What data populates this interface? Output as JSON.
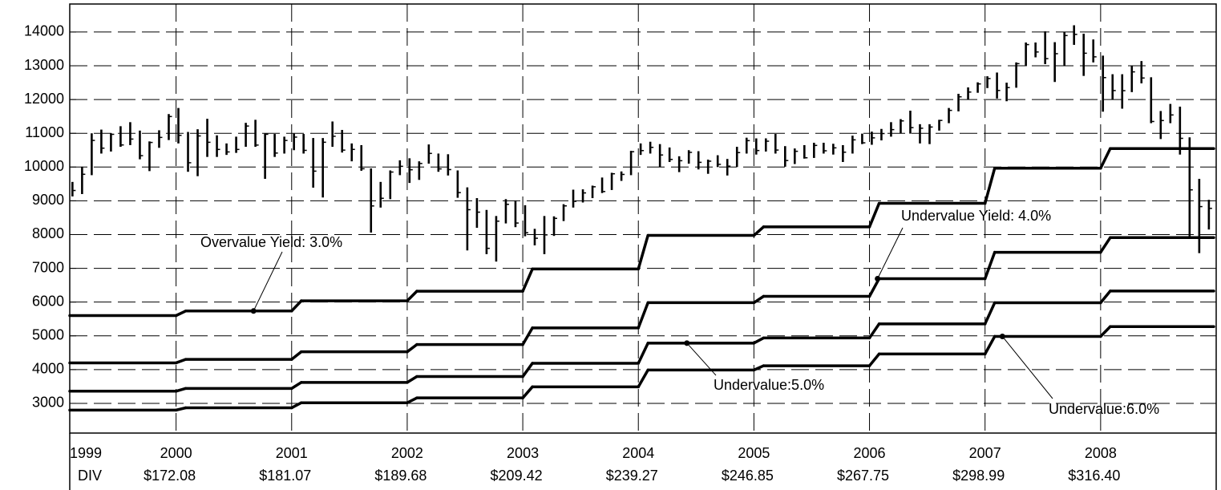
{
  "chart_data": {
    "type": "ohlc",
    "color": "#000000",
    "grid": true,
    "x": [
      "1999-02",
      "1999-03",
      "1999-04",
      "1999-05",
      "1999-06",
      "1999-07",
      "1999-08",
      "1999-09",
      "1999-10",
      "1999-11",
      "1999-12",
      "2000-01",
      "2000-02",
      "2000-03",
      "2000-04",
      "2000-05",
      "2000-06",
      "2000-07",
      "2000-08",
      "2000-09",
      "2000-10",
      "2000-11",
      "2000-12",
      "2001-01",
      "2001-02",
      "2001-03",
      "2001-04",
      "2001-05",
      "2001-06",
      "2001-07",
      "2001-08",
      "2001-09",
      "2001-10",
      "2001-11",
      "2001-12",
      "2002-01",
      "2002-02",
      "2002-03",
      "2002-04",
      "2002-05",
      "2002-06",
      "2002-07",
      "2002-08",
      "2002-09",
      "2002-10",
      "2002-11",
      "2002-12",
      "2003-01",
      "2003-02",
      "2003-03",
      "2003-04",
      "2003-05",
      "2003-06",
      "2003-07",
      "2003-08",
      "2003-09",
      "2003-10",
      "2003-11",
      "2003-12",
      "2004-01",
      "2004-02",
      "2004-03",
      "2004-04",
      "2004-05",
      "2004-06",
      "2004-07",
      "2004-08",
      "2004-09",
      "2004-10",
      "2004-11",
      "2004-12",
      "2005-01",
      "2005-02",
      "2005-03",
      "2005-04",
      "2005-05",
      "2005-06",
      "2005-07",
      "2005-08",
      "2005-09",
      "2005-10",
      "2005-11",
      "2005-12",
      "2006-01",
      "2006-02",
      "2006-03",
      "2006-04",
      "2006-05",
      "2006-06",
      "2006-07",
      "2006-08",
      "2006-09",
      "2006-10",
      "2006-11",
      "2006-12",
      "2007-01",
      "2007-02",
      "2007-03",
      "2007-04",
      "2007-05",
      "2007-06",
      "2007-07",
      "2007-08",
      "2007-09",
      "2007-10",
      "2007-11",
      "2007-12",
      "2008-01",
      "2008-02",
      "2008-03",
      "2008-04",
      "2008-05",
      "2008-06",
      "2008-07",
      "2008-08",
      "2008-09",
      "2008-10",
      "2008-11",
      "2008-12"
    ],
    "high": [
      9560,
      10010,
      11000,
      11110,
      11000,
      11210,
      11330,
      11080,
      10760,
      11090,
      11570,
      11750,
      11040,
      11120,
      11430,
      10940,
      10700,
      10900,
      11310,
      11400,
      10990,
      10980,
      10900,
      10990,
      10980,
      10860,
      10860,
      11350,
      11100,
      10700,
      10650,
      9960,
      9560,
      9900,
      10200,
      10260,
      10170,
      10670,
      10400,
      10380,
      9900,
      9400,
      9080,
      8730,
      8550,
      9050,
      9000,
      8870,
      8170,
      8550,
      8540,
      8900,
      9330,
      9340,
      9450,
      9690,
      9830,
      9870,
      10480,
      10700,
      10750,
      10680,
      10580,
      10320,
      10500,
      10470,
      10220,
      10350,
      10240,
      10600,
      10870,
      10850,
      10850,
      10980,
      10620,
      10550,
      10650,
      10720,
      10720,
      10690,
      10650,
      10930,
      10990,
      11050,
      11130,
      11330,
      11420,
      11670,
      11270,
      11270,
      11400,
      11750,
      12170,
      12360,
      12510,
      12690,
      12800,
      12500,
      13100,
      13690,
      13690,
      14020,
      13700,
      14000,
      14200,
      13950,
      13780,
      13300,
      12750,
      12750,
      13010,
      13140,
      12660,
      11660,
      11870,
      11790,
      10880,
      9650,
      9030
    ],
    "low": [
      9130,
      9200,
      9760,
      10400,
      10460,
      10600,
      10650,
      10230,
      9880,
      10570,
      10800,
      10700,
      9860,
      9730,
      10300,
      10300,
      10360,
      10420,
      10600,
      10600,
      9650,
      10300,
      10400,
      10500,
      10400,
      9390,
      9100,
      10600,
      10430,
      10170,
      9890,
      8060,
      8800,
      9050,
      9760,
      9530,
      9620,
      10100,
      9860,
      9750,
      9090,
      7530,
      8200,
      7420,
      7200,
      8330,
      8220,
      7950,
      7680,
      7420,
      7960,
      8400,
      8800,
      8950,
      9080,
      9230,
      9320,
      9590,
      9760,
      10360,
      10400,
      10000,
      10150,
      9850,
      10100,
      9930,
      9800,
      10000,
      9750,
      10000,
      10400,
      10370,
      10460,
      10400,
      10010,
      10090,
      10250,
      10270,
      10400,
      10370,
      10150,
      10400,
      10680,
      10660,
      10790,
      10900,
      11000,
      10990,
      10700,
      10680,
      11080,
      11300,
      11650,
      12000,
      12200,
      12340,
      12030,
      11950,
      12350,
      12990,
      13250,
      13050,
      12520,
      13000,
      13620,
      12700,
      13100,
      11640,
      12000,
      11730,
      12220,
      12480,
      11300,
      10830,
      11300,
      10370,
      7880,
      7450,
      8150
    ],
    "close": [
      9306,
      9786,
      10789,
      10560,
      10970,
      10655,
      10829,
      10337,
      10729,
      10878,
      11497,
      10940,
      10128,
      10922,
      10734,
      10522,
      10448,
      10522,
      11215,
      10651,
      10971,
      10415,
      10788,
      10887,
      10495,
      9879,
      10735,
      10912,
      10502,
      10523,
      9950,
      8848,
      9075,
      9852,
      10022,
      9920,
      10106,
      10404,
      9946,
      9925,
      9243,
      8737,
      8664,
      7592,
      8397,
      8896,
      8342,
      8054,
      7891,
      7992,
      8480,
      8850,
      8985,
      9234,
      9416,
      9275,
      9801,
      9782,
      10454,
      10488,
      10584,
      10358,
      10226,
      10188,
      10435,
      10140,
      10174,
      10080,
      10027,
      10428,
      10783,
      10490,
      10766,
      10504,
      10193,
      10467,
      10275,
      10641,
      10482,
      10569,
      10440,
      10806,
      10718,
      10865,
      10993,
      11109,
      11367,
      11168,
      11150,
      11186,
      11381,
      11679,
      12081,
      12222,
      12463,
      12622,
      12269,
      12354,
      13063,
      13628,
      13409,
      13212,
      13358,
      13896,
      13930,
      13372,
      13265,
      12650,
      12266,
      12263,
      12820,
      12638,
      11350,
      11378,
      11544,
      10851,
      9325,
      8829,
      8776
    ],
    "yield_line_years": [
      1999,
      2000,
      2001,
      2002,
      2003,
      2004,
      2005,
      2006,
      2007,
      2008
    ],
    "yield_lines": [
      {
        "values": [
          5600,
          5736,
          6036,
          6323,
          6981,
          7976,
          8228,
          8925,
          9966,
          10547
        ]
      },
      {
        "values": [
          4200,
          4302,
          4527,
          4742,
          5236,
          5982,
          6171,
          6694,
          7475,
          7910
        ]
      },
      {
        "values": [
          3360,
          3442,
          3621,
          3794,
          4188,
          4785,
          4937,
          5355,
          5980,
          6328
        ]
      },
      {
        "values": [
          2800,
          2868,
          3018,
          3161,
          3490,
          3988,
          4114,
          4463,
          4983,
          5273
        ]
      }
    ],
    "annotations": [
      {
        "text": "Overvalue Yield: 3.0%",
        "line": 0
      },
      {
        "text": "Undervalue Yield: 4.0%",
        "line": 1
      },
      {
        "text": "Undervalue:5.0%",
        "line": 2
      },
      {
        "text": "Undervalue:6.0%",
        "line": 3
      }
    ],
    "xlim": [
      1999.08,
      2009.0
    ],
    "xticks": [
      2000,
      2001,
      2002,
      2003,
      2004,
      2005,
      2006,
      2007,
      2008
    ],
    "x_start_label": "1999",
    "div_label": "DIV",
    "dividend_labels": [
      "$172.08",
      "$181.07",
      "$189.68",
      "$209.42",
      "$239.27",
      "$246.85",
      "$267.75",
      "$298.99",
      "$316.40"
    ],
    "ylim": [
      2120,
      14830
    ],
    "yticks": [
      3000,
      4000,
      5000,
      6000,
      7000,
      8000,
      9000,
      10000,
      11000,
      12000,
      13000,
      14000
    ]
  }
}
